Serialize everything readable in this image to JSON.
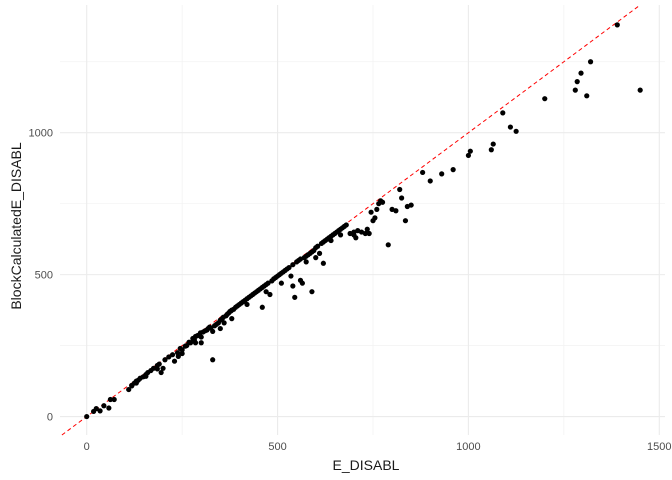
{
  "chart_data": {
    "type": "scatter",
    "title": "",
    "xlabel": "E_DISABL",
    "ylabel": "BlockCalculatedE_DISABL",
    "xlim": [
      -70,
      1515
    ],
    "ylim": [
      -65,
      1450
    ],
    "x_ticks": [
      0,
      500,
      1000,
      1500
    ],
    "y_ticks": [
      0,
      500,
      1000
    ],
    "grid": true,
    "reference_line": {
      "style": "dashed",
      "color": "#ff0000",
      "slope": 1,
      "intercept": 0
    },
    "point_color": "#000000",
    "points": [
      [
        0,
        0
      ],
      [
        18,
        18
      ],
      [
        25,
        28
      ],
      [
        35,
        20
      ],
      [
        45,
        38
      ],
      [
        58,
        30
      ],
      [
        62,
        60
      ],
      [
        72,
        60
      ],
      [
        110,
        95
      ],
      [
        118,
        110
      ],
      [
        125,
        118
      ],
      [
        130,
        125
      ],
      [
        135,
        128
      ],
      [
        140,
        135
      ],
      [
        148,
        140
      ],
      [
        155,
        148
      ],
      [
        160,
        155
      ],
      [
        168,
        162
      ],
      [
        175,
        170
      ],
      [
        185,
        180
      ],
      [
        190,
        185
      ],
      [
        195,
        155
      ],
      [
        205,
        200
      ],
      [
        215,
        210
      ],
      [
        225,
        218
      ],
      [
        230,
        195
      ],
      [
        238,
        225
      ],
      [
        245,
        240
      ],
      [
        250,
        235
      ],
      [
        258,
        248
      ],
      [
        262,
        250
      ],
      [
        268,
        262
      ],
      [
        272,
        260
      ],
      [
        278,
        275
      ],
      [
        282,
        270
      ],
      [
        285,
        282
      ],
      [
        290,
        285
      ],
      [
        295,
        288
      ],
      [
        298,
        295
      ],
      [
        300,
        280
      ],
      [
        305,
        298
      ],
      [
        310,
        302
      ],
      [
        315,
        305
      ],
      [
        318,
        310
      ],
      [
        322,
        315
      ],
      [
        325,
        312
      ],
      [
        330,
        200
      ],
      [
        335,
        320
      ],
      [
        340,
        325
      ],
      [
        345,
        330
      ],
      [
        350,
        340
      ],
      [
        355,
        345
      ],
      [
        358,
        350
      ],
      [
        360,
        330
      ],
      [
        365,
        355
      ],
      [
        368,
        360
      ],
      [
        372,
        365
      ],
      [
        375,
        370
      ],
      [
        378,
        372
      ],
      [
        380,
        375
      ],
      [
        385,
        378
      ],
      [
        390,
        385
      ],
      [
        395,
        390
      ],
      [
        400,
        395
      ],
      [
        405,
        400
      ],
      [
        410,
        405
      ],
      [
        415,
        410
      ],
      [
        420,
        415
      ],
      [
        425,
        420
      ],
      [
        430,
        425
      ],
      [
        435,
        430
      ],
      [
        440,
        435
      ],
      [
        445,
        440
      ],
      [
        450,
        445
      ],
      [
        455,
        450
      ],
      [
        460,
        455
      ],
      [
        465,
        460
      ],
      [
        470,
        465
      ],
      [
        475,
        470
      ],
      [
        480,
        430
      ],
      [
        485,
        478
      ],
      [
        490,
        485
      ],
      [
        495,
        490
      ],
      [
        500,
        495
      ],
      [
        505,
        500
      ],
      [
        510,
        505
      ],
      [
        515,
        510
      ],
      [
        520,
        515
      ],
      [
        525,
        520
      ],
      [
        530,
        525
      ],
      [
        535,
        495
      ],
      [
        540,
        535
      ],
      [
        545,
        420
      ],
      [
        550,
        545
      ],
      [
        555,
        550
      ],
      [
        560,
        555
      ],
      [
        565,
        470
      ],
      [
        570,
        560
      ],
      [
        575,
        565
      ],
      [
        580,
        570
      ],
      [
        585,
        575
      ],
      [
        590,
        580
      ],
      [
        595,
        585
      ],
      [
        600,
        595
      ],
      [
        605,
        600
      ],
      [
        610,
        575
      ],
      [
        615,
        610
      ],
      [
        620,
        615
      ],
      [
        625,
        620
      ],
      [
        630,
        625
      ],
      [
        635,
        630
      ],
      [
        640,
        635
      ],
      [
        645,
        640
      ],
      [
        650,
        645
      ],
      [
        655,
        650
      ],
      [
        660,
        655
      ],
      [
        665,
        660
      ],
      [
        670,
        665
      ],
      [
        675,
        670
      ],
      [
        680,
        675
      ],
      [
        690,
        645
      ],
      [
        700,
        650
      ],
      [
        710,
        655
      ],
      [
        720,
        650
      ],
      [
        730,
        645
      ],
      [
        740,
        645
      ],
      [
        750,
        690
      ],
      [
        755,
        700
      ],
      [
        760,
        730
      ],
      [
        765,
        750
      ],
      [
        770,
        760
      ],
      [
        775,
        755
      ],
      [
        790,
        605
      ],
      [
        800,
        730
      ],
      [
        810,
        725
      ],
      [
        820,
        800
      ],
      [
        825,
        770
      ],
      [
        835,
        690
      ],
      [
        840,
        740
      ],
      [
        850,
        745
      ],
      [
        880,
        860
      ],
      [
        900,
        830
      ],
      [
        930,
        855
      ],
      [
        960,
        870
      ],
      [
        1000,
        920
      ],
      [
        1005,
        935
      ],
      [
        1060,
        940
      ],
      [
        1065,
        960
      ],
      [
        1090,
        1070
      ],
      [
        1110,
        1020
      ],
      [
        1125,
        1005
      ],
      [
        1200,
        1120
      ],
      [
        1280,
        1150
      ],
      [
        1285,
        1180
      ],
      [
        1295,
        1210
      ],
      [
        1310,
        1130
      ],
      [
        1320,
        1250
      ],
      [
        1390,
        1380
      ],
      [
        1450,
        1150
      ],
      [
        460,
        385
      ],
      [
        540,
        460
      ],
      [
        590,
        440
      ],
      [
        620,
        540
      ],
      [
        350,
        310
      ],
      [
        300,
        260
      ],
      [
        250,
        222
      ],
      [
        200,
        170
      ],
      [
        155,
        142
      ],
      [
        130,
        118
      ],
      [
        118,
        108
      ],
      [
        575,
        545
      ],
      [
        640,
        620
      ],
      [
        700,
        640
      ],
      [
        735,
        660
      ],
      [
        745,
        720
      ],
      [
        665,
        640
      ],
      [
        705,
        630
      ],
      [
        600,
        560
      ],
      [
        560,
        480
      ],
      [
        510,
        470
      ],
      [
        470,
        440
      ],
      [
        420,
        395
      ],
      [
        380,
        345
      ],
      [
        330,
        300
      ],
      [
        285,
        260
      ],
      [
        240,
        212
      ],
      [
        185,
        168
      ]
    ]
  }
}
